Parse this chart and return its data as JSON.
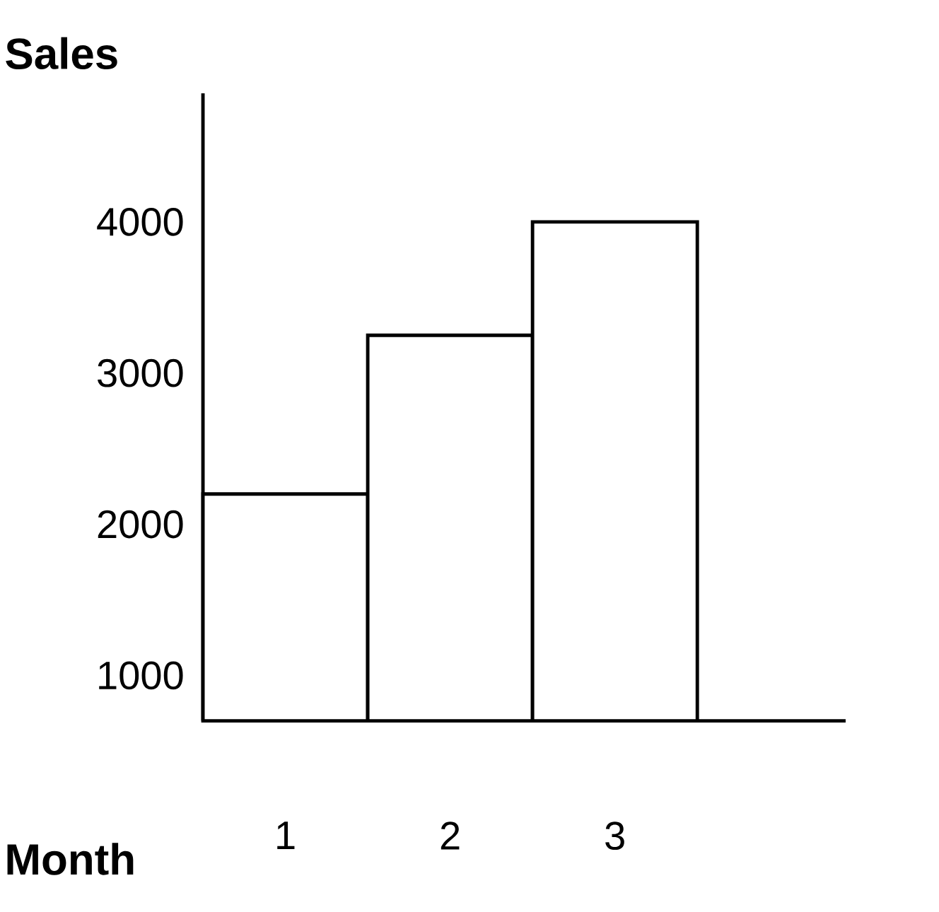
{
  "chart_data": {
    "type": "bar",
    "xlabel": "Month",
    "ylabel": "Sales",
    "categories": [
      "1",
      "2",
      "3"
    ],
    "values": [
      2200,
      3250,
      4000
    ],
    "color": "#000000",
    "ylim": [
      700,
      4850
    ],
    "yticks": [
      1000,
      2000,
      3000,
      4000
    ]
  }
}
